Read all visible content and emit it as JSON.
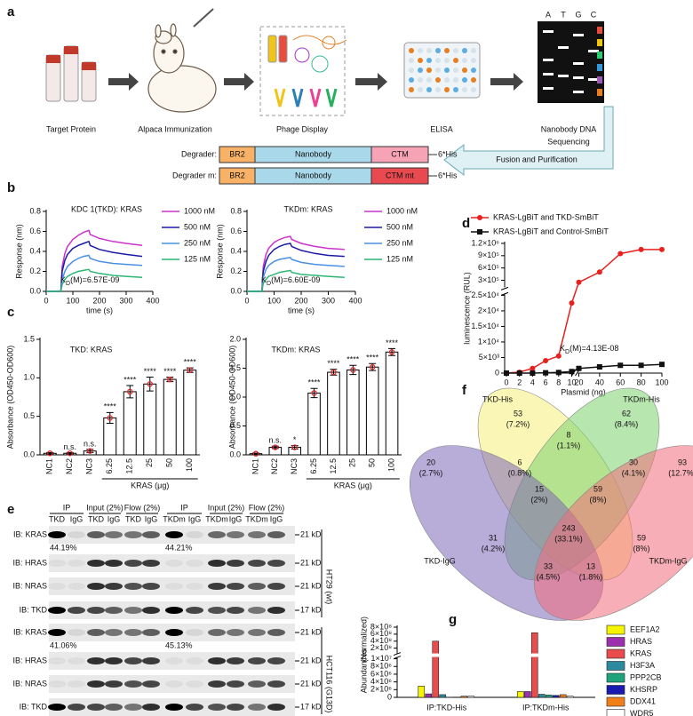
{
  "panel_labels": [
    "a",
    "b",
    "c",
    "d",
    "e",
    "f",
    "g"
  ],
  "panel_a": {
    "steps": [
      [
        "Target Protein"
      ],
      [
        "Alpaca Immunization"
      ],
      [
        "Phage Display"
      ],
      [
        "ELISA"
      ],
      [
        "Nanobody DNA",
        "Sequencing"
      ]
    ],
    "gel_letters": [
      "A",
      "T",
      "G",
      "C"
    ],
    "constructs": [
      {
        "label": "Degrader:",
        "parts": [
          "BR2",
          "Nanobody",
          "CTM"
        ],
        "colors": [
          "#f7b267",
          "#a8d8ea",
          "#f5a3b5"
        ],
        "tag": "6*His"
      },
      {
        "label": "Degrader m:",
        "parts": [
          "BR2",
          "Nanobody",
          "CTM mt"
        ],
        "colors": [
          "#f7b267",
          "#a8d8ea",
          "#e84a4f"
        ],
        "tag": "6*His"
      }
    ],
    "arrow_label": "Fusion and Purification"
  },
  "chart_data": [
    {
      "type": "line",
      "title": "KDC 1(TKD): KRAS",
      "xlabel": "time (s)",
      "ylabel": "Response (nm)",
      "annotation": [
        "K",
        "D",
        "(M)=6.57E-09"
      ],
      "x": [
        0,
        55,
        60,
        70,
        80,
        100,
        120,
        140,
        160,
        165,
        200,
        250,
        300,
        360
      ],
      "xlim": [
        0,
        400
      ],
      "xticks": [
        0,
        100,
        200,
        300,
        400
      ],
      "ylim": [
        0,
        0.8
      ],
      "yticks": [
        {
          "value": 0,
          "label": "0.0"
        },
        0.2,
        0.4,
        0.6,
        0.8
      ],
      "series": [
        {
          "name": "1000 nM",
          "color": "#cc33cc",
          "values": [
            0,
            0,
            0.25,
            0.38,
            0.45,
            0.52,
            0.56,
            0.59,
            0.61,
            0.57,
            0.53,
            0.5,
            0.48,
            0.46
          ]
        },
        {
          "name": "500 nM",
          "color": "#1a1aa6",
          "values": [
            0,
            0,
            0.2,
            0.31,
            0.37,
            0.43,
            0.46,
            0.48,
            0.5,
            0.46,
            0.42,
            0.39,
            0.37,
            0.35
          ]
        },
        {
          "name": "250 nM",
          "color": "#4a90e2",
          "values": [
            0,
            0,
            0.12,
            0.2,
            0.25,
            0.3,
            0.33,
            0.35,
            0.36,
            0.33,
            0.3,
            0.28,
            0.27,
            0.26
          ]
        },
        {
          "name": "125 nM",
          "color": "#2bb673",
          "values": [
            0,
            0,
            0.07,
            0.12,
            0.15,
            0.18,
            0.2,
            0.21,
            0.22,
            0.2,
            0.18,
            0.16,
            0.15,
            0.14
          ]
        }
      ]
    },
    {
      "type": "line",
      "title": "TKDm: KRAS",
      "xlabel": "time (s)",
      "ylabel": "Response (nm)",
      "annotation": [
        "K",
        "D",
        "(M)=6.60E-09"
      ],
      "x": [
        0,
        55,
        60,
        70,
        80,
        100,
        120,
        140,
        160,
        165,
        200,
        250,
        300,
        360
      ],
      "xlim": [
        0,
        400
      ],
      "xticks": [
        0,
        100,
        200,
        300,
        400
      ],
      "ylim": [
        0,
        0.8
      ],
      "yticks": [
        {
          "value": 0,
          "label": "0.0"
        },
        0.2,
        0.4,
        0.6,
        0.8
      ],
      "series": [
        {
          "name": "1000 nM",
          "color": "#cc33cc",
          "values": [
            0,
            0,
            0.25,
            0.37,
            0.43,
            0.49,
            0.52,
            0.54,
            0.55,
            0.52,
            0.48,
            0.45,
            0.43,
            0.42
          ]
        },
        {
          "name": "500 nM",
          "color": "#1a1aa6",
          "values": [
            0,
            0,
            0.2,
            0.3,
            0.36,
            0.42,
            0.45,
            0.47,
            0.48,
            0.45,
            0.41,
            0.38,
            0.36,
            0.35
          ]
        },
        {
          "name": "250 nM",
          "color": "#4a90e2",
          "values": [
            0,
            0,
            0.14,
            0.22,
            0.26,
            0.3,
            0.32,
            0.33,
            0.34,
            0.32,
            0.29,
            0.27,
            0.26,
            0.25
          ]
        },
        {
          "name": "125 nM",
          "color": "#2bb673",
          "values": [
            0,
            0,
            0.08,
            0.12,
            0.15,
            0.17,
            0.19,
            0.2,
            0.21,
            0.19,
            0.17,
            0.16,
            0.15,
            0.14
          ]
        }
      ]
    },
    {
      "type": "bar",
      "title": "TKD: KRAS",
      "xlabel": "KRAS (μg)",
      "ylabel": "Absorbance (OD450-OD600)",
      "categories": [
        "NC1",
        "NC2",
        "NC3",
        "6.25",
        "12.5",
        "25",
        "50",
        "100"
      ],
      "values": [
        0.02,
        0.02,
        0.05,
        0.48,
        0.82,
        0.92,
        0.98,
        1.1
      ],
      "errors": [
        0.01,
        0.01,
        0.02,
        0.07,
        0.08,
        0.09,
        0.03,
        0.03
      ],
      "significance": [
        null,
        "n.s.",
        "n.s.",
        "****",
        "****",
        "****",
        "****",
        "****"
      ],
      "color": "#ffffff",
      "point_color": "#e02020",
      "ylim": [
        0,
        1.5
      ],
      "yticks": [
        {
          "value": 0,
          "label": "0.0"
        },
        0.5,
        {
          "value": 1,
          "label": "1.0"
        },
        1.5
      ]
    },
    {
      "type": "bar",
      "title": "TKDm: KRAS",
      "xlabel": "KRAS (μg)",
      "ylabel": "Absorbance (OD450-OD600)",
      "categories": [
        "NC1",
        "NC2",
        "NC3",
        "6.25",
        "12.5",
        "25",
        "50",
        "100"
      ],
      "values": [
        0.02,
        0.13,
        0.13,
        1.07,
        1.43,
        1.47,
        1.52,
        1.78
      ],
      "errors": [
        0.01,
        0.02,
        0.03,
        0.08,
        0.05,
        0.08,
        0.06,
        0.06
      ],
      "significance": [
        null,
        "n.s.",
        "*",
        "****",
        "****",
        "****",
        "****",
        "****"
      ],
      "color": "#ffffff",
      "point_color": "#e02020",
      "ylim": [
        0,
        2
      ],
      "yticks": [
        {
          "value": 0,
          "label": "0.0"
        },
        0.5,
        {
          "value": 1,
          "label": "1.0"
        },
        1.5,
        {
          "value": 2,
          "label": "2.0"
        }
      ]
    },
    {
      "type": "line",
      "xlabel": "Plasmid (ng)",
      "ylabel": "luminescence (RUL)",
      "annotation": [
        "K",
        "D",
        "(M)=4.13E-08"
      ],
      "x": [
        0,
        2,
        4,
        6,
        8,
        10,
        20,
        40,
        60,
        80,
        100
      ],
      "xlim": [
        0,
        100
      ],
      "xbreak": [
        10,
        20
      ],
      "xticks": [
        0,
        2,
        4,
        6,
        8,
        10,
        20,
        40,
        60,
        80,
        100
      ],
      "ylim": [
        0,
        1200000
      ],
      "ybreak": [
        25000,
        150000
      ],
      "yticks": [
        0,
        {
          "value": 5000,
          "label": "5×10³"
        },
        {
          "value": 10000,
          "label": "1×10⁴"
        },
        {
          "value": 15000,
          "label": "1.5×10⁴"
        },
        {
          "value": 20000,
          "label": "2×10⁴"
        },
        {
          "value": 25000,
          "label": "2.5×10⁴"
        },
        {
          "value": 300000,
          "label": "3×10⁵"
        },
        {
          "value": 600000,
          "label": "6×10⁵"
        },
        {
          "value": 900000,
          "label": "9×10⁵"
        },
        {
          "value": 1200000,
          "label": "1.2×10⁶"
        }
      ],
      "series": [
        {
          "name": "KRAS-LgBiT and TKD-SmBiT",
          "color": "#e8201e",
          "marker": "circle",
          "values": [
            0,
            300,
            1500,
            4000,
            5500,
            22500,
            250000,
            500000,
            950000,
            1050000,
            1050000
          ]
        },
        {
          "name": "KRAS-LgBiT and Control-SmBiT",
          "color": "#111111",
          "marker": "square",
          "values": [
            0,
            0,
            0,
            100,
            200,
            500,
            1500,
            2000,
            2500,
            2500,
            2800
          ]
        }
      ]
    },
    {
      "type": "venn",
      "sets": [
        {
          "name": "TKD-His",
          "color": "#f5f07a",
          "label_color": "#e8a33a"
        },
        {
          "name": "TKDm-His",
          "color": "#7cd16d",
          "label_color": "#6cbf3c"
        },
        {
          "name": "TKD-IgG",
          "color": "#7d68b8",
          "label_color": "#6a3fa8"
        },
        {
          "name": "TKDm-IgG",
          "color": "#f26b7a",
          "label_color": "#d63ca0"
        }
      ],
      "values": [
        53,
        62,
        20,
        93,
        6,
        8,
        30,
        15,
        59,
        243,
        31,
        59,
        33,
        13
      ],
      "percents": [
        7.2,
        8.4,
        2.7,
        12.7,
        0.8,
        1.1,
        4.1,
        2,
        8,
        33.1,
        4.2,
        8,
        4.5,
        1.8
      ],
      "percent_labels": [
        "(7.2%)",
        "(8.4%)",
        "(2.7%)",
        "(12.7%)",
        "(0.8%)",
        "(1.1%)",
        "(4.1%)",
        "(2%)",
        "(8%)",
        "(33.1%)",
        "(4.2%)",
        "(8%)",
        "(4.5%)",
        "(1.8%)"
      ]
    },
    {
      "type": "bar",
      "ylabel": "Abundances",
      "ylabel2": "(Normalized)",
      "categories": [
        "IP:TKD-His",
        "IP:TKDm-His"
      ],
      "ylim": [
        0,
        800000000
      ],
      "ybreak": [
        10000000,
        100000000
      ],
      "yticks": [
        0,
        {
          "value": 2000000,
          "label": "2×10⁶"
        },
        {
          "value": 4000000,
          "label": "4×10⁶"
        },
        {
          "value": 6000000,
          "label": "6×10⁶"
        },
        {
          "value": 8000000,
          "label": "8×10⁶"
        },
        {
          "value": 10000000,
          "label": "1×10⁷"
        },
        {
          "value": 200000000,
          "label": "2×10⁸"
        },
        {
          "value": 400000000,
          "label": "4×10⁸"
        },
        {
          "value": 600000000,
          "label": "6×10⁸"
        },
        {
          "value": 800000000,
          "label": "8×10⁸"
        }
      ],
      "series": [
        {
          "name": "EEF1A2",
          "color": "#f5f500",
          "values": [
            2900000,
            1500000
          ]
        },
        {
          "name": "HRAS",
          "color": "#9b2fae",
          "values": [
            900000,
            1500000
          ]
        },
        {
          "name": "KRAS",
          "color": "#e84c4c",
          "values": [
            400000000,
            640000000
          ]
        },
        {
          "name": "H3F3A",
          "color": "#2b8a9e",
          "values": [
            700000,
            800000
          ]
        },
        {
          "name": "PPP2CB",
          "color": "#1fa37a",
          "values": [
            50000,
            600000
          ]
        },
        {
          "name": "KHSRP",
          "color": "#1a1ab0",
          "values": [
            0,
            500000
          ]
        },
        {
          "name": "DDX41",
          "color": "#f07f1a",
          "values": [
            300000,
            700000
          ]
        },
        {
          "name": "WDR5",
          "color": "#ffffff",
          "values": [
            300000,
            300000
          ]
        }
      ]
    }
  ],
  "panel_e": {
    "headers": [
      "IP",
      "Input (2%)",
      "Flow (2%)",
      "IP",
      "Input (2%)",
      "Flow (2%)"
    ],
    "lanes": [
      "TKD",
      "IgG",
      "TKD",
      "IgG",
      "TKD",
      "IgG",
      "TKDm",
      "IgG",
      "TKDm",
      "IgG",
      "TKDm",
      "IgG"
    ],
    "blocks": [
      {
        "cell_line": "HT29 (wt)",
        "rows": [
          "IB: KRAS",
          "IB: HRAS",
          "IB: NRAS",
          "IB: TKD"
        ],
        "sizes": [
          "21 kD",
          "21 kD",
          "21 kD",
          "17 kD"
        ],
        "percents": [
          "44.19%",
          "44.21%"
        ]
      },
      {
        "cell_line": "HCT116 (G13D)",
        "rows": [
          "IB: KRAS",
          "IB: HRAS",
          "IB: NRAS",
          "IB: TKD"
        ],
        "sizes": [
          "21 kD",
          "21 kD",
          "21 kD",
          "17 kD"
        ],
        "percents": [
          "41.06%",
          "45.13%"
        ]
      }
    ]
  }
}
